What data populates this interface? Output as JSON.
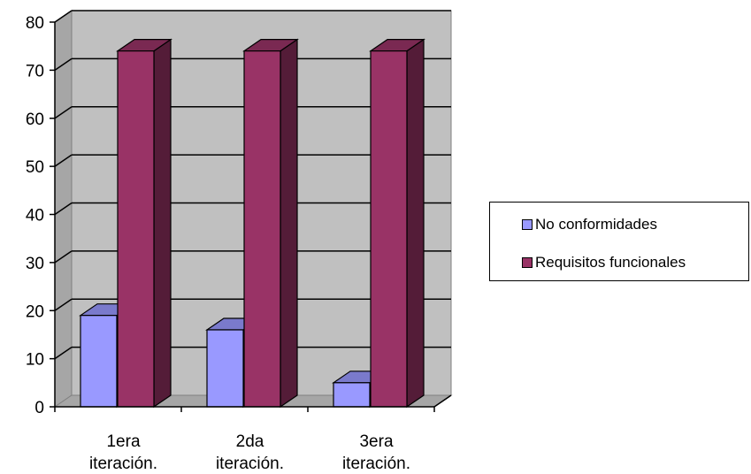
{
  "chart_data": {
    "type": "bar",
    "categories": [
      "1era iteración.",
      "2da iteración.",
      "3era iteración."
    ],
    "category_lines": [
      [
        "1era",
        "iteración."
      ],
      [
        "2da",
        "iteración."
      ],
      [
        "3era",
        "iteración."
      ]
    ],
    "series": [
      {
        "name": "No conformidades",
        "values": [
          19,
          16,
          5
        ],
        "color": "#9999ff"
      },
      {
        "name": "Requisitos funcionales",
        "values": [
          74,
          74,
          74
        ],
        "color": "#993366"
      }
    ],
    "ylim": [
      0,
      80
    ],
    "yticks": [
      0,
      10,
      20,
      30,
      40,
      50,
      60,
      70,
      80
    ],
    "grid": true,
    "legend_position": "right",
    "wall_color": "#c0c0c0",
    "title": "",
    "xlabel": "",
    "ylabel": ""
  }
}
